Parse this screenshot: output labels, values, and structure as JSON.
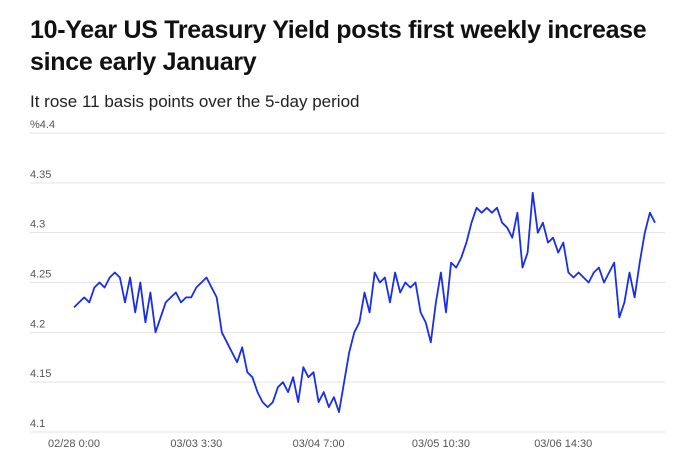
{
  "chart_data": {
    "type": "line",
    "title": "10-Year US Treasury Yield posts first weekly increase since early January",
    "subtitle": "It rose 11 basis points over the 5-day period",
    "categories": [
      "02/28 0:00",
      null,
      null,
      null,
      null,
      null,
      null,
      null,
      null,
      null,
      null,
      null,
      null,
      null,
      null,
      null,
      null,
      null,
      null,
      null,
      null,
      null,
      null,
      null,
      "03/03 3:30",
      null,
      null,
      null,
      null,
      null,
      null,
      null,
      null,
      null,
      null,
      null,
      null,
      null,
      null,
      null,
      null,
      null,
      null,
      null,
      null,
      null,
      null,
      null,
      "03/04 7:00",
      null,
      null,
      null,
      null,
      null,
      null,
      null,
      null,
      null,
      null,
      null,
      null,
      null,
      null,
      null,
      null,
      null,
      null,
      null,
      null,
      null,
      null,
      null,
      "03/05 10:30",
      null,
      null,
      null,
      null,
      null,
      null,
      null,
      null,
      null,
      null,
      null,
      null,
      null,
      null,
      null,
      null,
      null,
      null,
      null,
      null,
      null,
      null,
      null,
      "03/06 14:30",
      null,
      null,
      null,
      null,
      null,
      null,
      null,
      null,
      null,
      null,
      null,
      null,
      null,
      null,
      null,
      null,
      null,
      null
    ],
    "values": [
      4.225,
      4.23,
      4.235,
      4.23,
      4.245,
      4.25,
      4.245,
      4.255,
      4.26,
      4.255,
      4.23,
      4.255,
      4.22,
      4.25,
      4.21,
      4.24,
      4.2,
      4.215,
      4.23,
      4.235,
      4.24,
      4.23,
      4.235,
      4.235,
      4.245,
      4.25,
      4.255,
      4.245,
      4.235,
      4.2,
      4.19,
      4.18,
      4.17,
      4.185,
      4.16,
      4.155,
      4.14,
      4.13,
      4.125,
      4.13,
      4.145,
      4.15,
      4.14,
      4.155,
      4.13,
      4.165,
      4.155,
      4.16,
      4.13,
      4.14,
      4.125,
      4.135,
      4.12,
      4.15,
      4.18,
      4.2,
      4.21,
      4.24,
      4.22,
      4.26,
      4.25,
      4.255,
      4.23,
      4.26,
      4.24,
      4.25,
      4.245,
      4.25,
      4.22,
      4.21,
      4.19,
      4.23,
      4.26,
      4.22,
      4.27,
      4.265,
      4.275,
      4.29,
      4.31,
      4.325,
      4.32,
      4.325,
      4.32,
      4.325,
      4.31,
      4.305,
      4.295,
      4.32,
      4.265,
      4.28,
      4.34,
      4.3,
      4.31,
      4.29,
      4.295,
      4.28,
      4.29,
      4.26,
      4.255,
      4.26,
      4.255,
      4.25,
      4.26,
      4.265,
      4.25,
      4.26,
      4.27,
      4.215,
      4.23,
      4.26,
      4.235,
      4.27,
      4.3,
      4.32,
      4.31
    ],
    "color": "#1a2ee8",
    "ylim": [
      4.1,
      4.4
    ],
    "yticks": [
      4.1,
      4.15,
      4.2,
      4.25,
      4.3,
      4.35,
      {
        "value": 4.4,
        "label": "%4.4"
      }
    ],
    "grid": true
  }
}
